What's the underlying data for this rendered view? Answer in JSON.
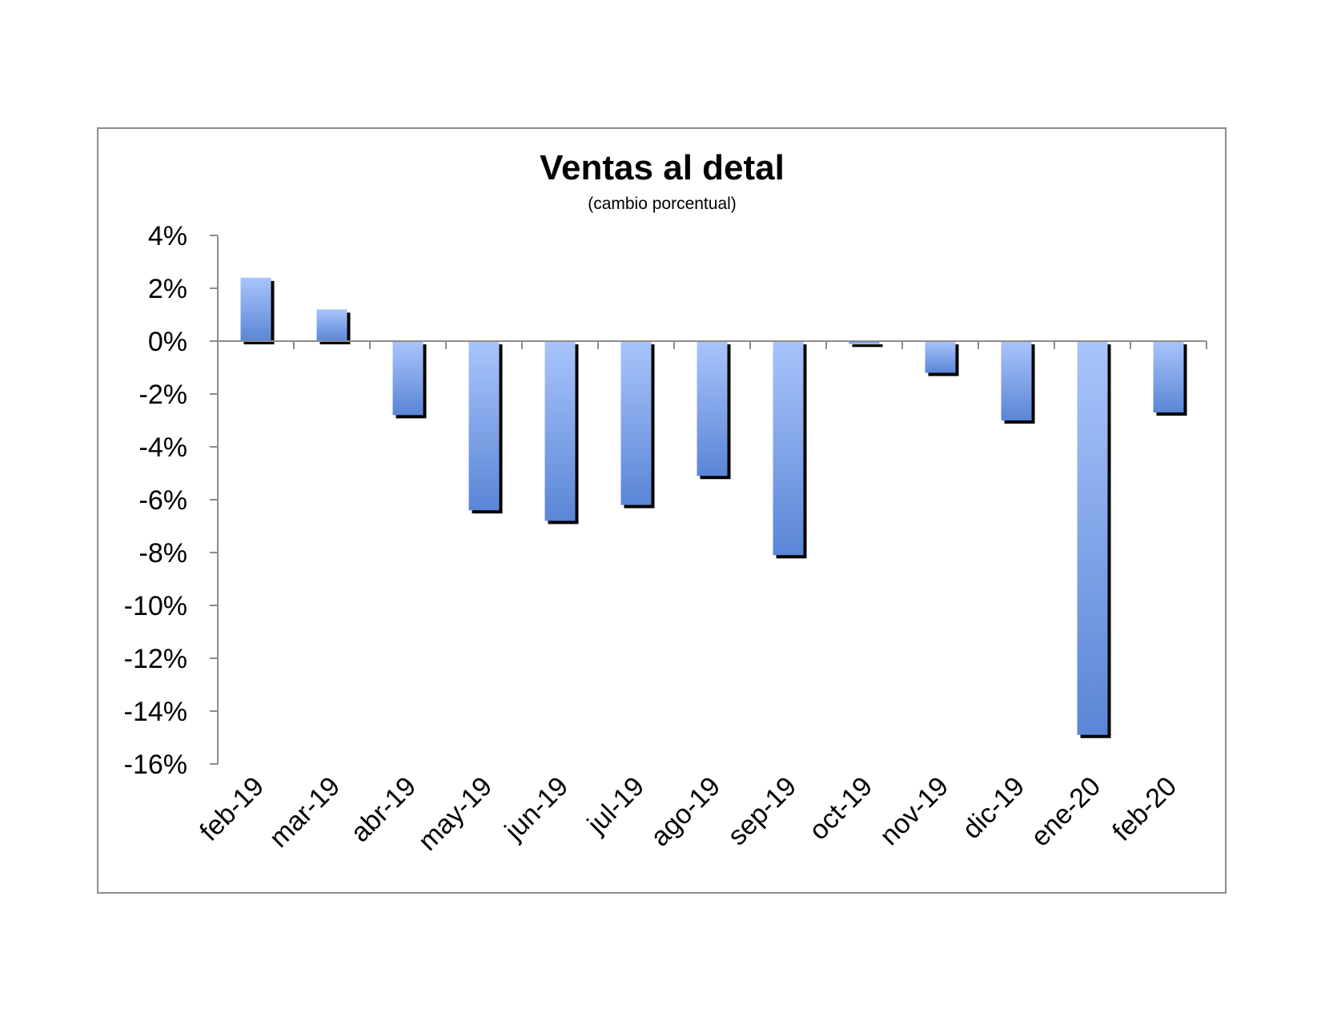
{
  "chart_data": {
    "type": "bar",
    "title": "Ventas al detal",
    "subtitle": "(cambio porcentual)",
    "xlabel": "",
    "ylabel": "",
    "categories": [
      "feb-19",
      "mar-19",
      "abr-19",
      "may-19",
      "jun-19",
      "jul-19",
      "ago-19",
      "sep-19",
      "oct-19",
      "nov-19",
      "dic-19",
      "ene-20",
      "feb-20"
    ],
    "values": [
      2.4,
      1.2,
      -2.8,
      -6.4,
      -6.8,
      -6.2,
      -5.1,
      -8.1,
      -0.1,
      -1.2,
      -3.0,
      -14.9,
      -2.7
    ],
    "ylim": [
      -16,
      4
    ],
    "yticks": [
      4,
      2,
      0,
      -2,
      -4,
      -6,
      -8,
      -10,
      -12,
      -14,
      -16
    ],
    "ytick_labels": [
      "4%",
      "2%",
      "0%",
      "-2%",
      "-4%",
      "-6%",
      "-8%",
      "-10%",
      "-12%",
      "-14%",
      "-16%"
    ],
    "grid": false,
    "legend": "none",
    "colors": {
      "bar_light": "#a9c4fb",
      "bar_dark": "#5a86d6",
      "shadow": "#000000",
      "axis": "#8c8c8c",
      "frame": "#8c8c8c"
    }
  }
}
